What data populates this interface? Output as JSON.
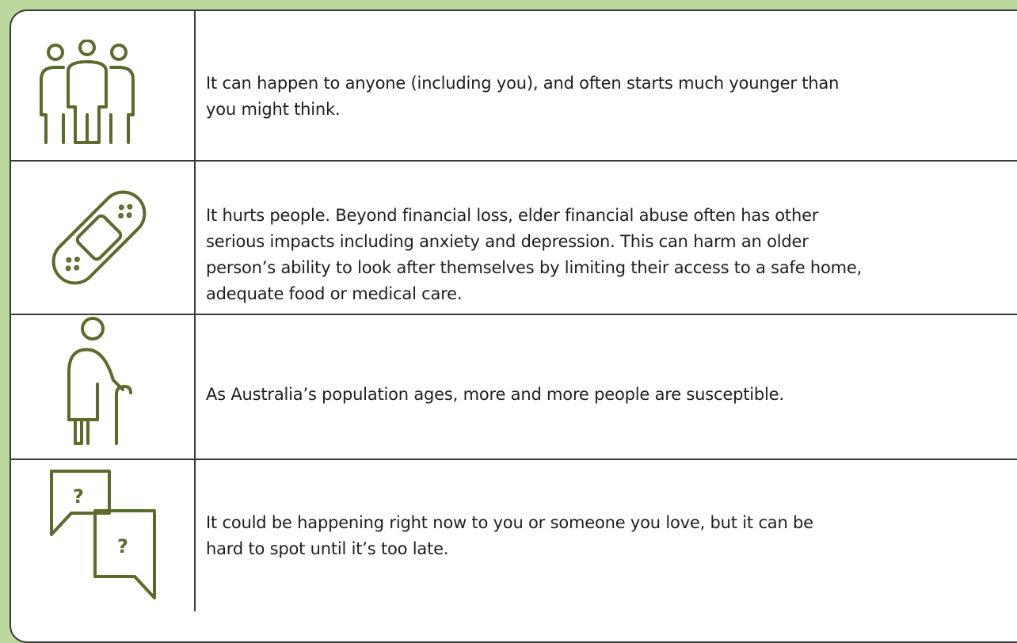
{
  "table": {
    "rows": [
      {
        "lines": [
          "It can happen to anyone (including you), and often starts much younger than",
          "you might think."
        ]
      },
      {
        "lines": [
          "It hurts people. Beyond financial loss, elder financial abuse often has other",
          "serious impacts including anxiety and depression. This can harm an older",
          "person’s ability to look after themselves by limiting their access to a safe home,",
          "adequate food or medical care."
        ]
      },
      {
        "lines": [
          "As Australia’s population ages, more and more people are susceptible."
        ]
      },
      {
        "lines": [
          "It could be happening right now to you or someone you love, but it can be",
          "hard to spot until it’s too late."
        ]
      }
    ]
  }
}
